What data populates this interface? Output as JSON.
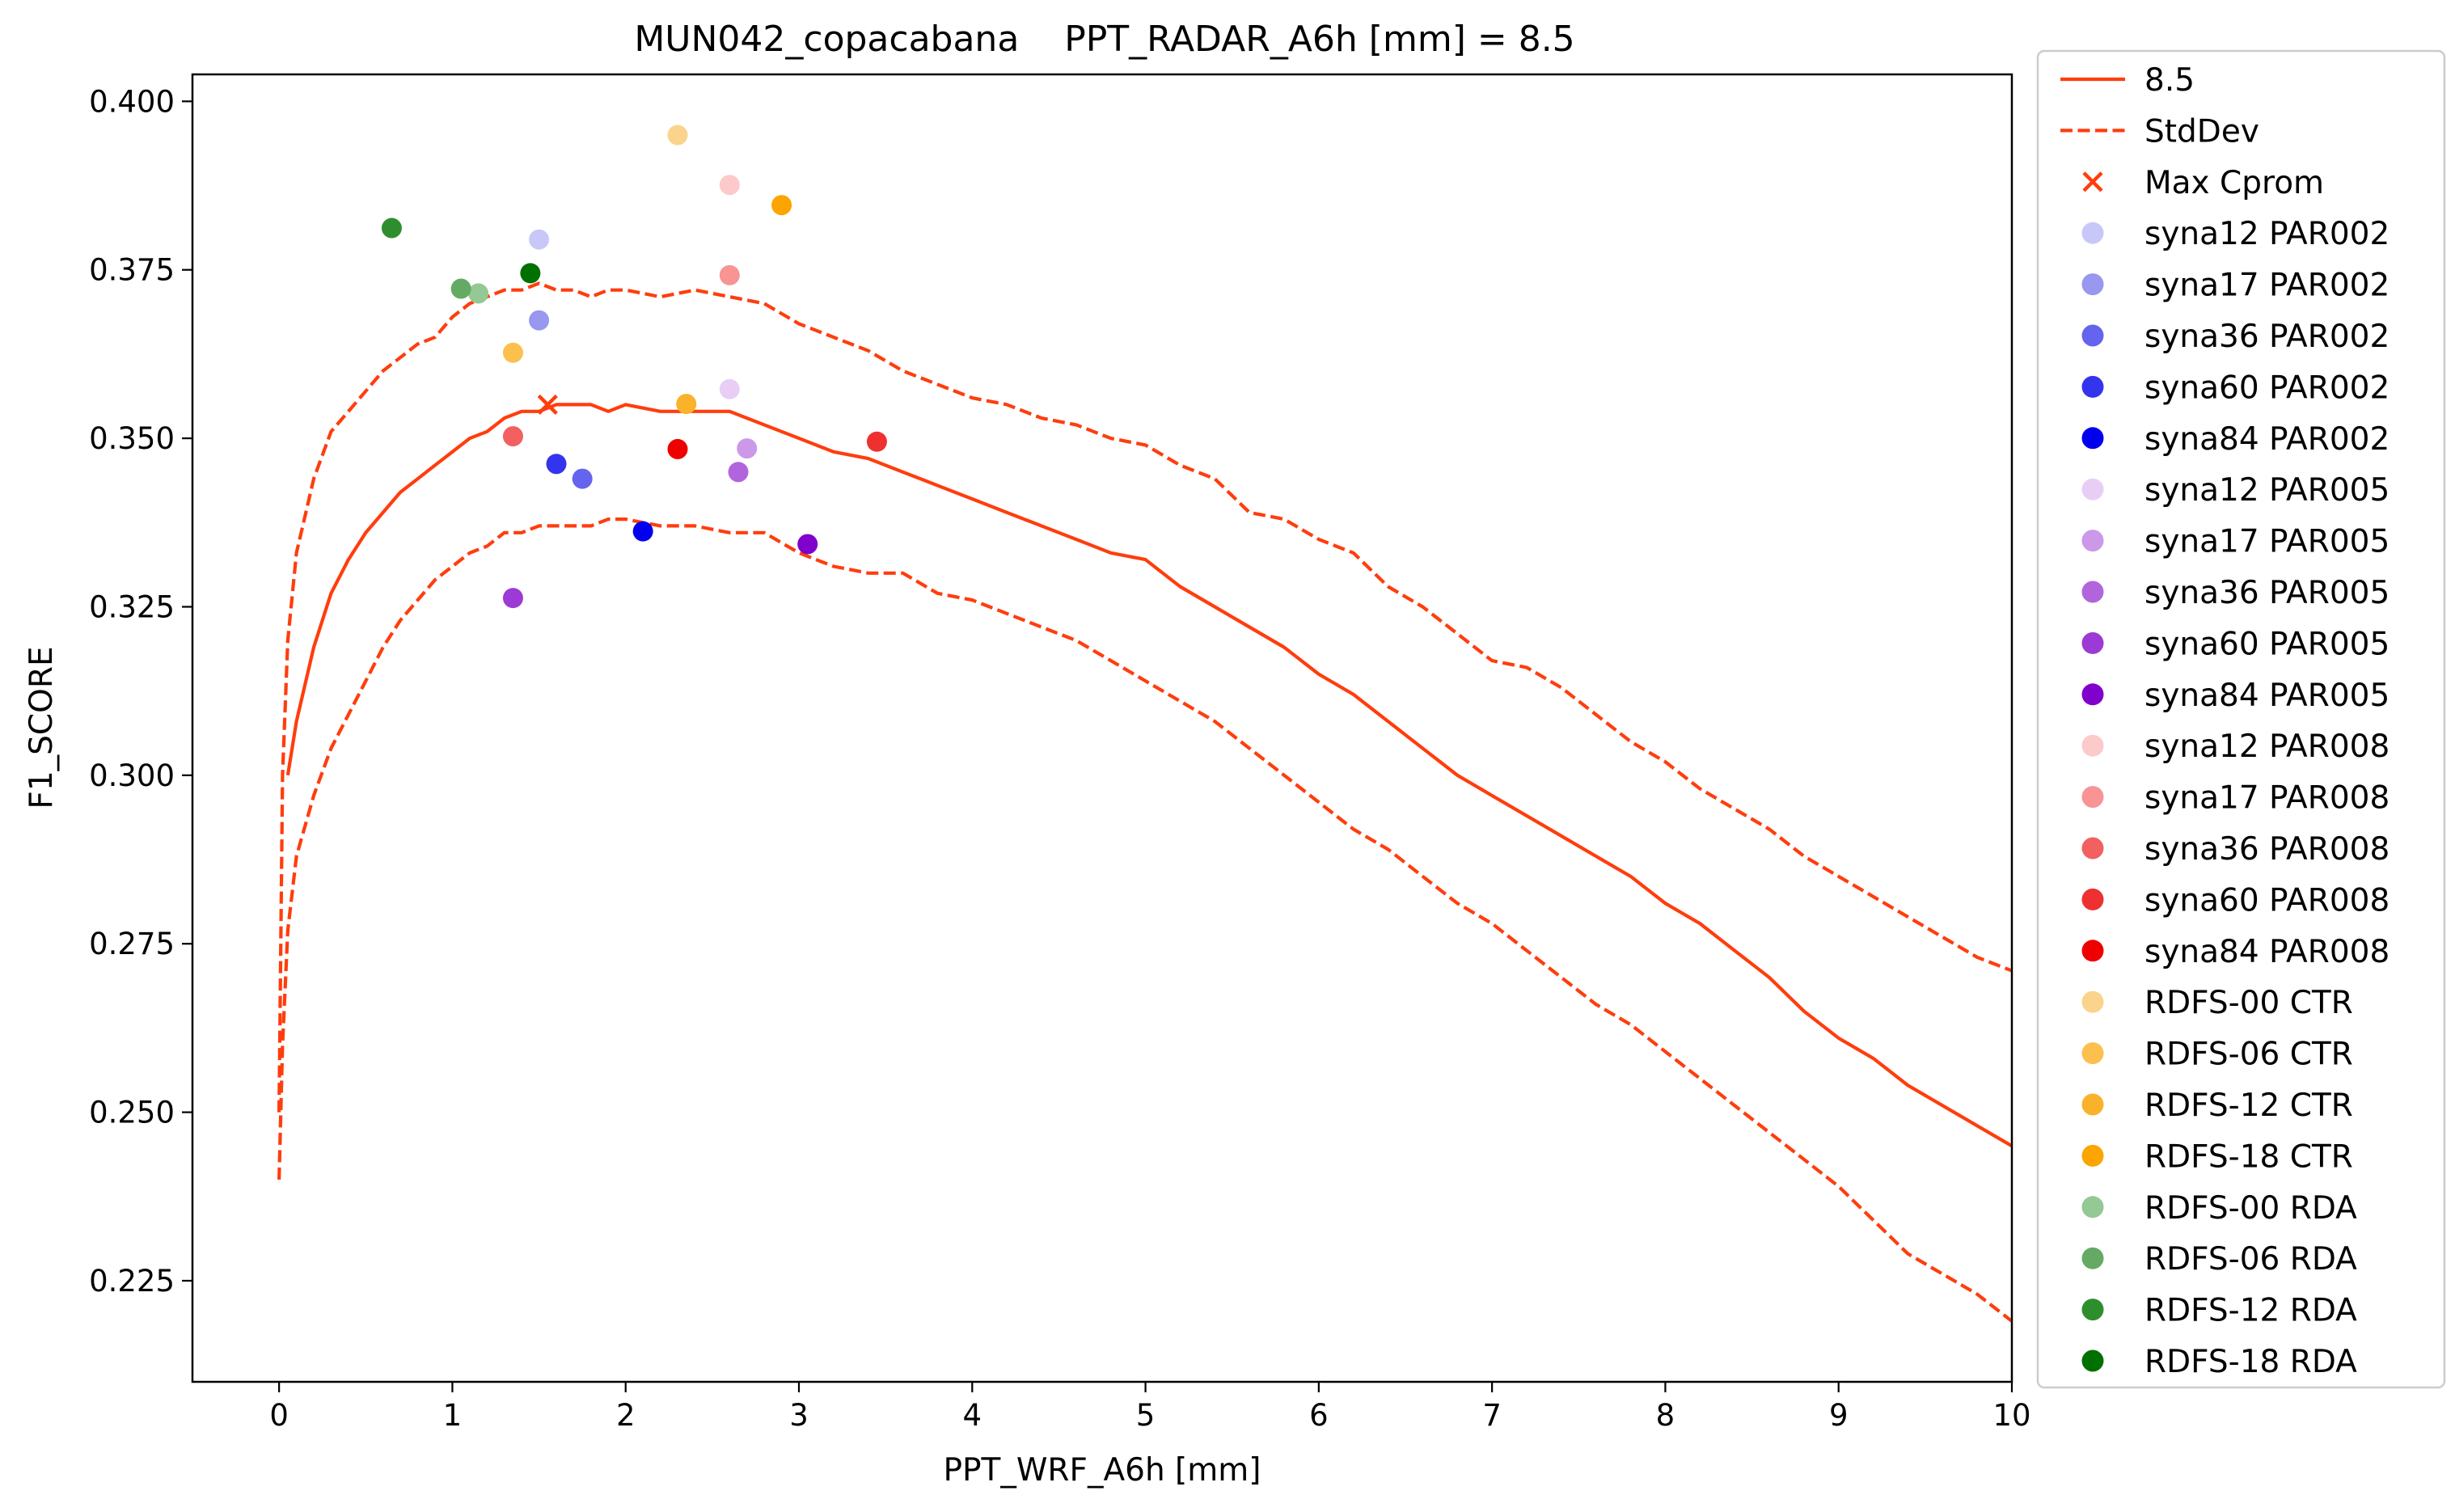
{
  "chart_data": {
    "type": "line",
    "title": "MUN042_copacabana    PPT_RADAR_A6h [mm] = 8.5",
    "xlabel": "PPT_WRF_A6h [mm]",
    "ylabel": "F1_SCORE",
    "xlim": [
      -0.5,
      10
    ],
    "ylim": [
      0.21,
      0.404
    ],
    "xticks": [
      0,
      1,
      2,
      3,
      4,
      5,
      6,
      7,
      8,
      9,
      10
    ],
    "xtick_labels": [
      "0",
      "1",
      "2",
      "3",
      "4",
      "5",
      "6",
      "7",
      "8",
      "9",
      "10"
    ],
    "yticks": [
      0.225,
      0.25,
      0.275,
      0.3,
      0.325,
      0.35,
      0.375,
      0.4
    ],
    "ytick_labels": [
      "0.225",
      "0.250",
      "0.275",
      "0.300",
      "0.325",
      "0.350",
      "0.375",
      "0.400"
    ],
    "grid": false,
    "legend_position": "outside-right",
    "lines": [
      {
        "name": "8.5",
        "style": "solid",
        "color": "#ff3d0d",
        "x": [
          0.05,
          0.1,
          0.2,
          0.3,
          0.4,
          0.5,
          0.6,
          0.7,
          0.8,
          0.9,
          1.0,
          1.1,
          1.2,
          1.3,
          1.4,
          1.5,
          1.6,
          1.7,
          1.8,
          1.9,
          2.0,
          2.2,
          2.4,
          2.6,
          2.8,
          3.0,
          3.2,
          3.4,
          3.6,
          3.8,
          4.0,
          4.2,
          4.4,
          4.6,
          4.8,
          5.0,
          5.2,
          5.4,
          5.6,
          5.8,
          6.0,
          6.2,
          6.4,
          6.6,
          6.8,
          7.0,
          7.2,
          7.4,
          7.6,
          7.8,
          8.0,
          8.2,
          8.4,
          8.6,
          8.8,
          9.0,
          9.2,
          9.4,
          9.6,
          9.8,
          10.0
        ],
        "y": [
          0.3,
          0.308,
          0.319,
          0.327,
          0.332,
          0.336,
          0.339,
          0.342,
          0.344,
          0.346,
          0.348,
          0.35,
          0.351,
          0.353,
          0.354,
          0.354,
          0.355,
          0.355,
          0.355,
          0.354,
          0.355,
          0.354,
          0.354,
          0.354,
          0.352,
          0.35,
          0.348,
          0.347,
          0.345,
          0.343,
          0.341,
          0.339,
          0.337,
          0.335,
          0.333,
          0.332,
          0.328,
          0.325,
          0.322,
          0.319,
          0.315,
          0.312,
          0.308,
          0.304,
          0.3,
          0.297,
          0.294,
          0.291,
          0.288,
          0.285,
          0.281,
          0.278,
          0.274,
          0.27,
          0.265,
          0.261,
          0.258,
          0.254,
          0.251,
          0.248,
          0.245
        ]
      },
      {
        "name": "StdDev",
        "style": "dashed",
        "color": "#ff3d0d",
        "x": [
          0.0,
          0.02,
          0.05,
          0.1,
          0.2,
          0.3,
          0.4,
          0.5,
          0.6,
          0.7,
          0.8,
          0.9,
          1.0,
          1.1,
          1.2,
          1.3,
          1.4,
          1.5,
          1.6,
          1.7,
          1.8,
          1.9,
          2.0,
          2.2,
          2.4,
          2.6,
          2.8,
          3.0,
          3.2,
          3.4,
          3.6,
          3.8,
          4.0,
          4.2,
          4.4,
          4.6,
          4.8,
          5.0,
          5.2,
          5.4,
          5.6,
          5.8,
          6.0,
          6.2,
          6.4,
          6.6,
          6.8,
          7.0,
          7.2,
          7.4,
          7.6,
          7.8,
          8.0,
          8.2,
          8.4,
          8.6,
          8.8,
          9.0,
          9.2,
          9.4,
          9.6,
          9.8,
          10.0
        ],
        "y": [
          0.25,
          0.3,
          0.32,
          0.333,
          0.344,
          0.351,
          0.354,
          0.357,
          0.36,
          0.362,
          0.364,
          0.365,
          0.368,
          0.37,
          0.371,
          0.372,
          0.372,
          0.373,
          0.372,
          0.372,
          0.371,
          0.372,
          0.372,
          0.371,
          0.372,
          0.371,
          0.37,
          0.367,
          0.365,
          0.363,
          0.36,
          0.358,
          0.356,
          0.355,
          0.353,
          0.352,
          0.35,
          0.349,
          0.346,
          0.344,
          0.339,
          0.338,
          0.335,
          0.333,
          0.328,
          0.325,
          0.321,
          0.317,
          0.316,
          0.313,
          0.309,
          0.305,
          0.302,
          0.298,
          0.295,
          0.292,
          0.288,
          0.285,
          0.282,
          0.279,
          0.276,
          0.273,
          0.271
        ]
      },
      {
        "name": "",
        "style": "dashed",
        "color": "#ff3d0d",
        "x": [
          0.0,
          0.02,
          0.05,
          0.1,
          0.2,
          0.3,
          0.4,
          0.5,
          0.6,
          0.7,
          0.8,
          0.9,
          1.0,
          1.1,
          1.2,
          1.3,
          1.4,
          1.5,
          1.6,
          1.7,
          1.8,
          1.9,
          2.0,
          2.2,
          2.4,
          2.6,
          2.8,
          3.0,
          3.2,
          3.4,
          3.6,
          3.8,
          4.0,
          4.2,
          4.4,
          4.6,
          4.8,
          5.0,
          5.2,
          5.4,
          5.6,
          5.8,
          6.0,
          6.2,
          6.4,
          6.6,
          6.8,
          7.0,
          7.2,
          7.4,
          7.6,
          7.8,
          8.0,
          8.2,
          8.4,
          8.6,
          8.8,
          9.0,
          9.2,
          9.4,
          9.6,
          9.8,
          10.0
        ],
        "y": [
          0.24,
          0.26,
          0.277,
          0.288,
          0.297,
          0.304,
          0.309,
          0.314,
          0.319,
          0.323,
          0.326,
          0.329,
          0.331,
          0.333,
          0.334,
          0.336,
          0.336,
          0.337,
          0.337,
          0.337,
          0.337,
          0.338,
          0.338,
          0.337,
          0.337,
          0.336,
          0.336,
          0.333,
          0.331,
          0.33,
          0.33,
          0.327,
          0.326,
          0.324,
          0.322,
          0.32,
          0.317,
          0.314,
          0.311,
          0.308,
          0.304,
          0.3,
          0.296,
          0.292,
          0.289,
          0.285,
          0.281,
          0.278,
          0.274,
          0.27,
          0.266,
          0.263,
          0.259,
          0.255,
          0.251,
          0.247,
          0.243,
          0.239,
          0.234,
          0.229,
          0.226,
          0.223,
          0.219
        ]
      }
    ],
    "max_marker": {
      "name": "Max Cprom",
      "x": 1.55,
      "y": 0.355,
      "color": "#ff3d0d"
    },
    "points": [
      {
        "name": "syna12 PAR002",
        "x": 1.5,
        "y": 0.3795,
        "color": "#c8c8f8"
      },
      {
        "name": "syna17 PAR002",
        "x": 1.5,
        "y": 0.3675,
        "color": "#9898f0"
      },
      {
        "name": "syna36 PAR002",
        "x": 1.75,
        "y": 0.344,
        "color": "#6464ee"
      },
      {
        "name": "syna60 PAR002",
        "x": 1.6,
        "y": 0.3462,
        "color": "#3434ee"
      },
      {
        "name": "syna84 PAR002",
        "x": 2.1,
        "y": 0.3362,
        "color": "#0000ee"
      },
      {
        "name": "syna12 PAR005",
        "x": 2.6,
        "y": 0.3573,
        "color": "#e8cef5"
      },
      {
        "name": "syna17 PAR005",
        "x": 2.7,
        "y": 0.3485,
        "color": "#cc98ea"
      },
      {
        "name": "syna36 PAR005",
        "x": 2.65,
        "y": 0.345,
        "color": "#b264dc"
      },
      {
        "name": "syna60 PAR005",
        "x": 1.35,
        "y": 0.3263,
        "color": "#9c3ad6"
      },
      {
        "name": "syna84 PAR005",
        "x": 3.05,
        "y": 0.3343,
        "color": "#8000cc"
      },
      {
        "name": "syna12 PAR008",
        "x": 2.6,
        "y": 0.3876,
        "color": "#fccaca"
      },
      {
        "name": "syna17 PAR008",
        "x": 2.6,
        "y": 0.3742,
        "color": "#f89494"
      },
      {
        "name": "syna36 PAR008",
        "x": 1.35,
        "y": 0.3503,
        "color": "#f26060"
      },
      {
        "name": "syna60 PAR008",
        "x": 3.45,
        "y": 0.3495,
        "color": "#ee3030"
      },
      {
        "name": "syna84 PAR008",
        "x": 2.3,
        "y": 0.3484,
        "color": "#ee0000"
      },
      {
        "name": "RDFS-00 CTR",
        "x": 2.3,
        "y": 0.395,
        "color": "#fad48c"
      },
      {
        "name": "RDFS-06 CTR",
        "x": 1.35,
        "y": 0.3627,
        "color": "#fbc04e"
      },
      {
        "name": "RDFS-12 CTR",
        "x": 2.35,
        "y": 0.3551,
        "color": "#fab22a"
      },
      {
        "name": "RDFS-18 CTR",
        "x": 2.9,
        "y": 0.3846,
        "color": "#fca400"
      },
      {
        "name": "RDFS-00 RDA",
        "x": 1.15,
        "y": 0.3715,
        "color": "#94c894"
      },
      {
        "name": "RDFS-06 RDA",
        "x": 1.05,
        "y": 0.3722,
        "color": "#64aa64"
      },
      {
        "name": "RDFS-12 RDA",
        "x": 0.65,
        "y": 0.3812,
        "color": "#2e8e2e"
      },
      {
        "name": "RDFS-18 RDA",
        "x": 1.45,
        "y": 0.3745,
        "color": "#007000"
      }
    ],
    "legend": [
      {
        "label": "8.5",
        "kind": "line",
        "color": "#ff3d0d"
      },
      {
        "label": "StdDev",
        "kind": "dashed",
        "color": "#ff3d0d"
      },
      {
        "label": "Max Cprom",
        "kind": "cross",
        "color": "#ff3d0d"
      },
      {
        "label": "syna12 PAR002",
        "kind": "dot",
        "color": "#c8c8f8"
      },
      {
        "label": "syna17 PAR002",
        "kind": "dot",
        "color": "#9898f0"
      },
      {
        "label": "syna36 PAR002",
        "kind": "dot",
        "color": "#6464ee"
      },
      {
        "label": "syna60 PAR002",
        "kind": "dot",
        "color": "#3434ee"
      },
      {
        "label": "syna84 PAR002",
        "kind": "dot",
        "color": "#0000ee"
      },
      {
        "label": "syna12 PAR005",
        "kind": "dot",
        "color": "#e8cef5"
      },
      {
        "label": "syna17 PAR005",
        "kind": "dot",
        "color": "#cc98ea"
      },
      {
        "label": "syna36 PAR005",
        "kind": "dot",
        "color": "#b264dc"
      },
      {
        "label": "syna60 PAR005",
        "kind": "dot",
        "color": "#9c3ad6"
      },
      {
        "label": "syna84 PAR005",
        "kind": "dot",
        "color": "#8000cc"
      },
      {
        "label": "syna12 PAR008",
        "kind": "dot",
        "color": "#fccaca"
      },
      {
        "label": "syna17 PAR008",
        "kind": "dot",
        "color": "#f89494"
      },
      {
        "label": "syna36 PAR008",
        "kind": "dot",
        "color": "#f26060"
      },
      {
        "label": "syna60 PAR008",
        "kind": "dot",
        "color": "#ee3030"
      },
      {
        "label": "syna84 PAR008",
        "kind": "dot",
        "color": "#ee0000"
      },
      {
        "label": "RDFS-00 CTR",
        "kind": "dot",
        "color": "#fad48c"
      },
      {
        "label": "RDFS-06 CTR",
        "kind": "dot",
        "color": "#fbc04e"
      },
      {
        "label": "RDFS-12 CTR",
        "kind": "dot",
        "color": "#fab22a"
      },
      {
        "label": "RDFS-18 CTR",
        "kind": "dot",
        "color": "#fca400"
      },
      {
        "label": "RDFS-00 RDA",
        "kind": "dot",
        "color": "#94c894"
      },
      {
        "label": "RDFS-06 RDA",
        "kind": "dot",
        "color": "#64aa64"
      },
      {
        "label": "RDFS-12 RDA",
        "kind": "dot",
        "color": "#2e8e2e"
      },
      {
        "label": "RDFS-18 RDA",
        "kind": "dot",
        "color": "#007000"
      }
    ]
  }
}
